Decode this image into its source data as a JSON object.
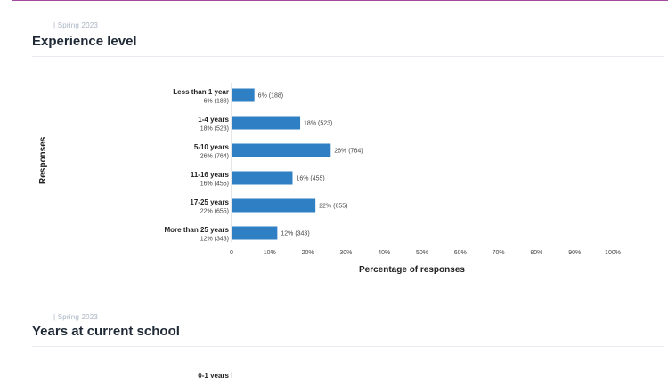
{
  "sections": [
    {
      "meta": "| Spring 2023",
      "title": "Experience level"
    },
    {
      "meta": "| Spring 2023",
      "title": "Years at current school"
    }
  ],
  "chart_data": [
    {
      "type": "bar",
      "orientation": "horizontal",
      "title": "Experience level",
      "ylabel": "Responses",
      "xlabel": "Percentage of responses",
      "xlim": [
        0,
        100
      ],
      "xticks": [
        "0",
        "10%",
        "20%",
        "30%",
        "40%",
        "50%",
        "60%",
        "70%",
        "80%",
        "90%",
        "100%"
      ],
      "bar_color": "#2f7fc4",
      "categories": [
        "Less than 1 year",
        "1-4 years",
        "5-10 years",
        "11-16 years",
        "17-25 years",
        "More than 25 years"
      ],
      "values": [
        6,
        18,
        26,
        16,
        22,
        12
      ],
      "counts": [
        188,
        523,
        764,
        455,
        655,
        343
      ],
      "category_sublabels": [
        "6% (188)",
        "18% (523)",
        "26% (764)",
        "16% (455)",
        "22% (655)",
        "12% (343)"
      ],
      "data_labels": [
        "6% (188)",
        "18% (523)",
        "26% (764)",
        "16% (455)",
        "22% (655)",
        "12% (343)"
      ]
    },
    {
      "type": "bar",
      "orientation": "horizontal",
      "title": "Years at current school",
      "categories": [
        "0-1 years"
      ]
    }
  ]
}
